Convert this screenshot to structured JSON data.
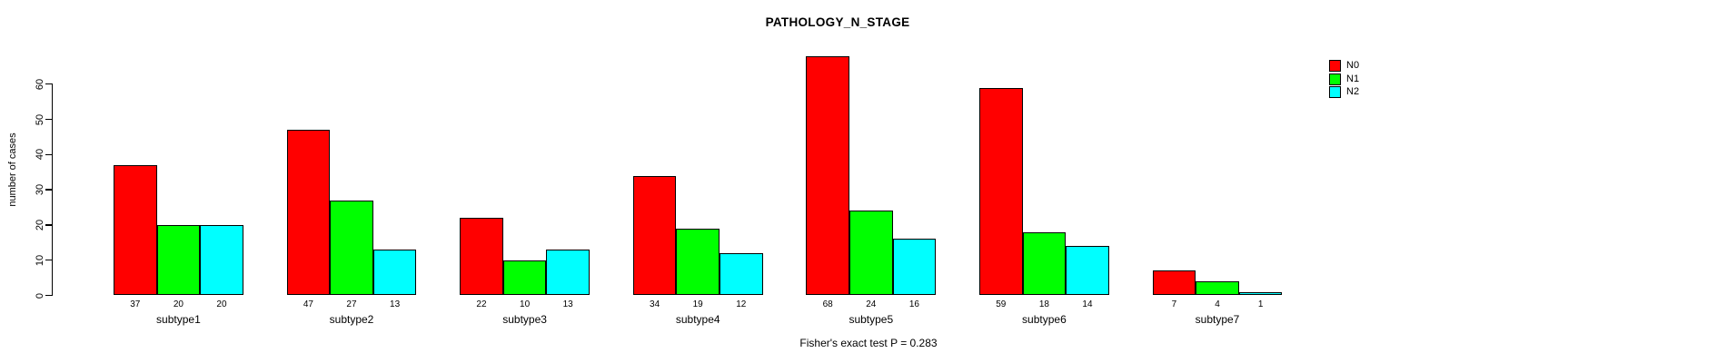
{
  "title": "PATHOLOGY_N_STAGE",
  "annotation": "Fisher's exact test P = 0.283",
  "colors": {
    "N0": "#ff0000",
    "N1": "#00ff00",
    "N2": "#00ffff",
    "axis": "#000000",
    "background": "#ffffff"
  },
  "chart_data": {
    "type": "bar",
    "title": "PATHOLOGY_N_STAGE",
    "xlabel": "",
    "ylabel": "number of cases",
    "categories": [
      "subtype1",
      "subtype2",
      "subtype3",
      "subtype4",
      "subtype5",
      "subtype6",
      "subtype7"
    ],
    "series": [
      {
        "name": "N0",
        "color": "#ff0000",
        "values": [
          37,
          47,
          22,
          34,
          68,
          59,
          7
        ]
      },
      {
        "name": "N1",
        "color": "#00ff00",
        "values": [
          20,
          27,
          10,
          19,
          24,
          18,
          4
        ]
      },
      {
        "name": "N2",
        "color": "#00ffff",
        "values": [
          20,
          13,
          13,
          12,
          16,
          14,
          1
        ]
      }
    ],
    "yticks": [
      0,
      10,
      20,
      30,
      40,
      50,
      60
    ],
    "ylim": [
      0,
      60
    ],
    "grid": false,
    "bar_value_labels": true,
    "legend_position": "top-right",
    "annotation": "Fisher's exact test P = 0.283"
  }
}
